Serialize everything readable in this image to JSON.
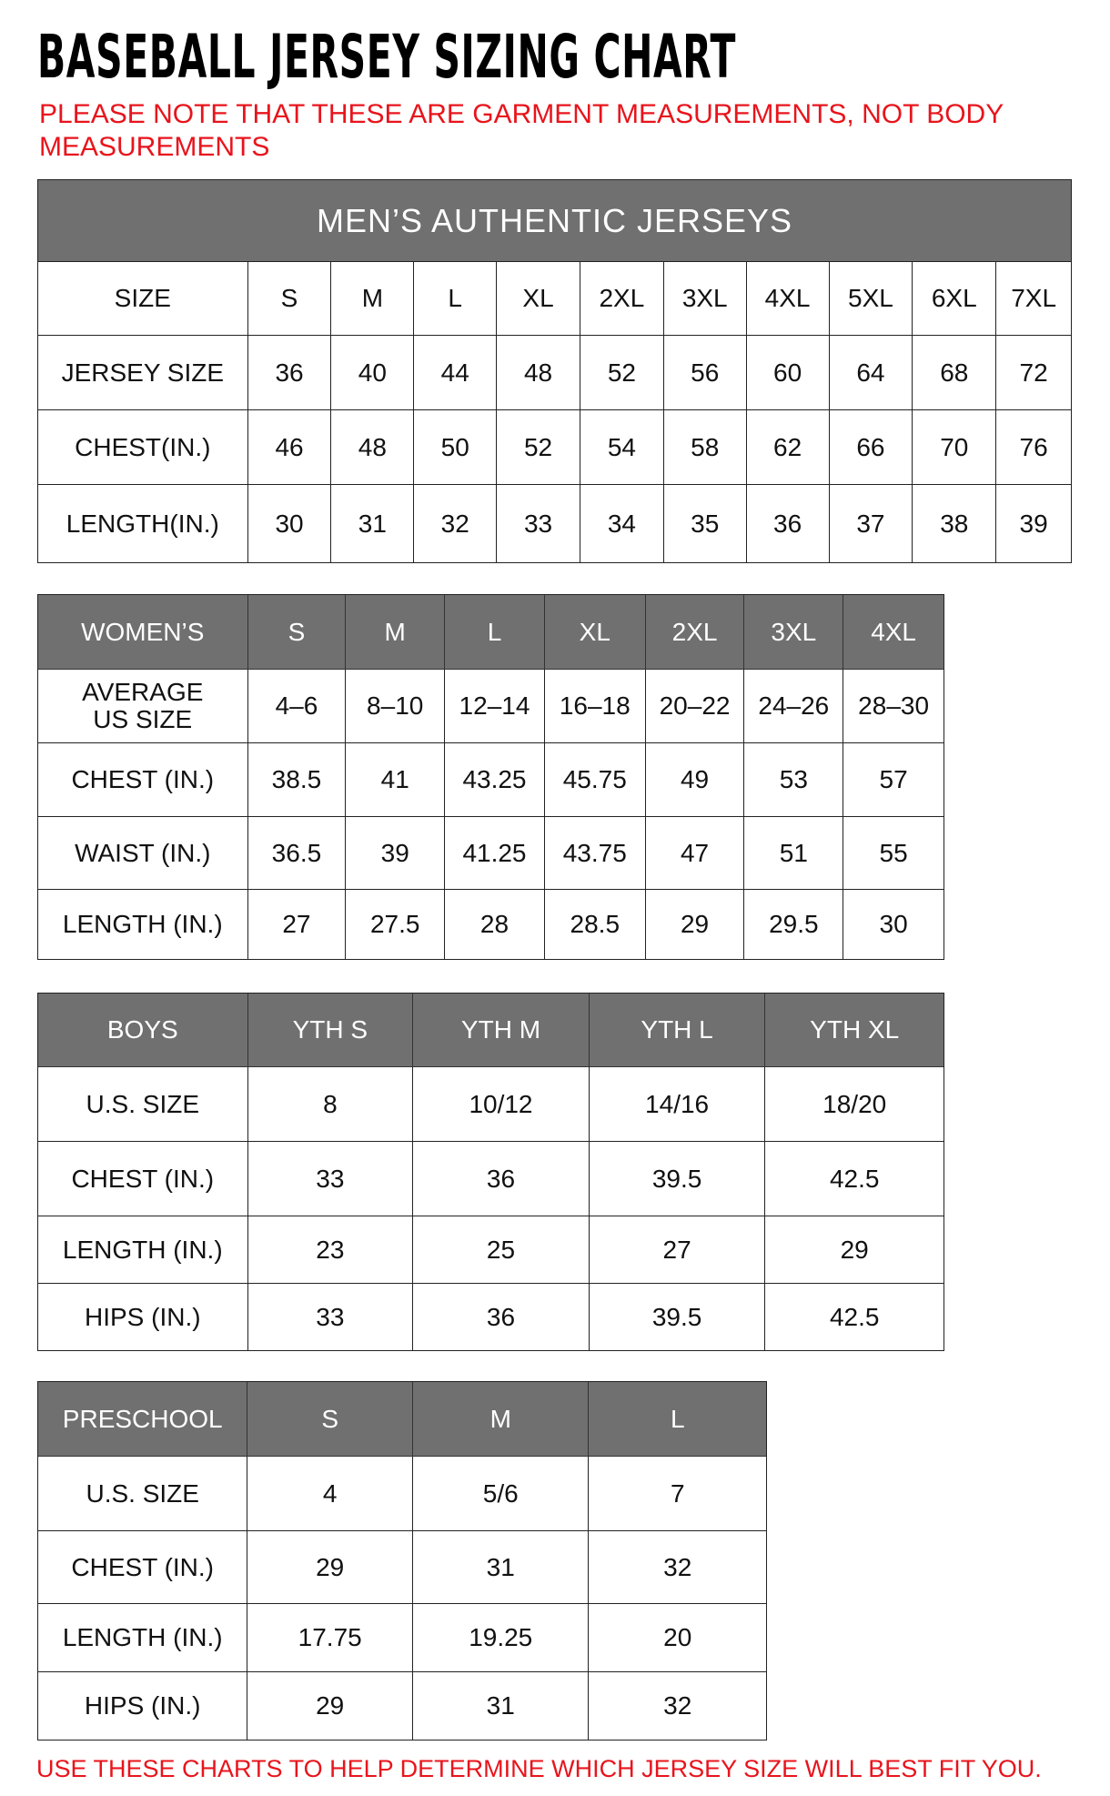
{
  "title": "BASEBALL JERSEY SIZING CHART",
  "note": "PLEASE NOTE THAT THESE ARE GARMENT MEASUREMENTS, NOT BODY MEASUREMENTS",
  "footer": "USE THESE CHARTS TO HELP DETERMINE WHICH JERSEY SIZE WILL BEST FIT YOU.",
  "colors": {
    "header_bg": "#707070",
    "note_red": "#e8141c"
  },
  "tables": [
    {
      "id": "mens",
      "banner": "MEN’S AUTHENTIC JERSEYS",
      "header": [
        "SIZE",
        "S",
        "M",
        "L",
        "XL",
        "2XL",
        "3XL",
        "4XL",
        "5XL",
        "6XL",
        "7XL"
      ],
      "header_dark": false,
      "rows": [
        [
          "JERSEY SIZE",
          "36",
          "40",
          "44",
          "48",
          "52",
          "56",
          "60",
          "64",
          "68",
          "72"
        ],
        [
          "CHEST(IN.)",
          "46",
          "48",
          "50",
          "52",
          "54",
          "58",
          "62",
          "66",
          "70",
          "76"
        ],
        [
          "LENGTH(IN.)",
          "30",
          "31",
          "32",
          "33",
          "34",
          "35",
          "36",
          "37",
          "38",
          "39"
        ]
      ]
    },
    {
      "id": "womens",
      "header": [
        "WOMEN’S",
        "S",
        "M",
        "L",
        "XL",
        "2XL",
        "3XL",
        "4XL"
      ],
      "header_dark": true,
      "rows": [
        [
          "AVERAGE\nUS SIZE",
          "4–6",
          "8–10",
          "12–14",
          "16–18",
          "20–22",
          "24–26",
          "28–30"
        ],
        [
          "CHEST (IN.)",
          "38.5",
          "41",
          "43.25",
          "45.75",
          "49",
          "53",
          "57"
        ],
        [
          "WAIST (IN.)",
          "36.5",
          "39",
          "41.25",
          "43.75",
          "47",
          "51",
          "55"
        ],
        [
          "LENGTH (IN.)",
          "27",
          "27.5",
          "28",
          "28.5",
          "29",
          "29.5",
          "30"
        ]
      ]
    },
    {
      "id": "boys",
      "header": [
        "BOYS",
        "YTH S",
        "YTH M",
        "YTH L",
        "YTH XL"
      ],
      "header_dark": true,
      "rows": [
        [
          "U.S. SIZE",
          "8",
          "10/12",
          "14/16",
          "18/20"
        ],
        [
          "CHEST (IN.)",
          "33",
          "36",
          "39.5",
          "42.5"
        ],
        [
          "LENGTH (IN.)",
          "23",
          "25",
          "27",
          "29"
        ],
        [
          "HIPS (IN.)",
          "33",
          "36",
          "39.5",
          "42.5"
        ]
      ]
    },
    {
      "id": "preschool",
      "header": [
        "PRESCHOOL",
        "S",
        "M",
        "L"
      ],
      "header_dark": true,
      "rows": [
        [
          "U.S. SIZE",
          "4",
          "5/6",
          "7"
        ],
        [
          "CHEST (IN.)",
          "29",
          "31",
          "32"
        ],
        [
          "LENGTH (IN.)",
          "17.75",
          "19.25",
          "20"
        ],
        [
          "HIPS (IN.)",
          "29",
          "31",
          "32"
        ]
      ]
    }
  ]
}
